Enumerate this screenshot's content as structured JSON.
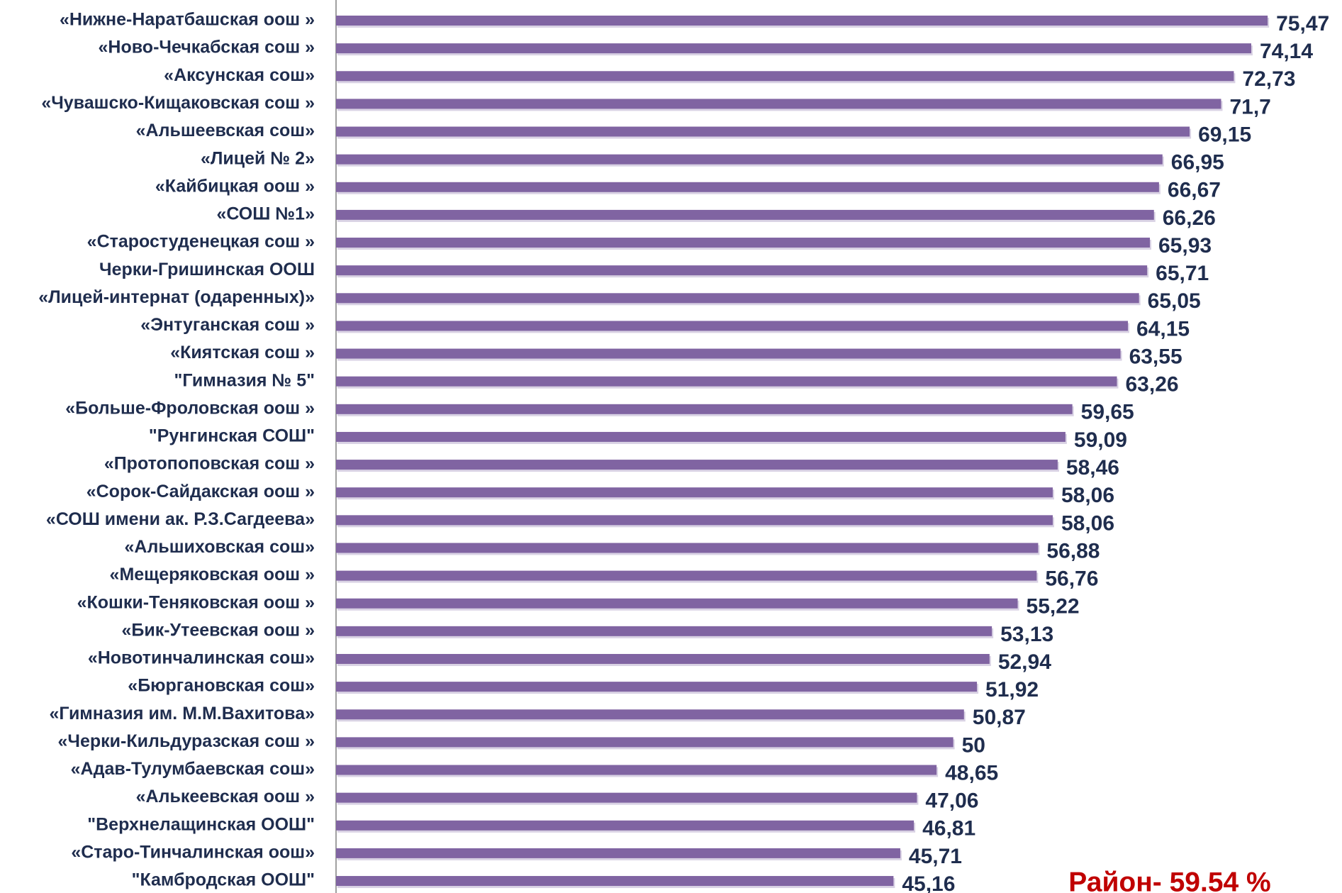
{
  "chart_data": {
    "type": "bar",
    "orientation": "horizontal",
    "categories": [
      "«Нижне-Наратбашская оош »",
      "«Ново-Чечкабская сош »",
      "«Аксунская сош»",
      "«Чувашско-Кищаковская сош »",
      "«Альшеевская сош»",
      "«Лицей № 2»",
      "«Кайбицкая оош »",
      "«СОШ №1»",
      "«Старостуденецкая сош »",
      "Черки-Гришинская ООШ",
      "«Лицей-интернат (одаренных)»",
      "«Энтуганская сош »",
      "«Киятская сош »",
      "\"Гимназия № 5\"",
      "«Больше-Фроловская оош »",
      "\"Рунгинская СОШ\"",
      "«Протопоповская сош »",
      "«Сорок-Сайдакская оош »",
      "«СОШ имени ак. Р.З.Сагдеева»",
      "«Альшиховская сош»",
      "«Мещеряковская оош »",
      "«Кошки-Теняковская оош »",
      "«Бик-Утеевская оош »",
      "«Новотинчалинская сош»",
      "«Бюргановская сош»",
      "«Гимназия им. М.М.Вахитова»",
      "«Черки-Кильдуразская сош »",
      "«Адав-Тулумбаевская сош»",
      "«Алькеевская оош »",
      "\"Верхнелащинская ООШ\"",
      "«Старо-Тинчалинская оош»",
      "\"Камбродская ООШ\""
    ],
    "values": [
      75.47,
      74.14,
      72.73,
      71.7,
      69.15,
      66.95,
      66.67,
      66.26,
      65.93,
      65.71,
      65.05,
      64.15,
      63.55,
      63.26,
      59.65,
      59.09,
      58.46,
      58.06,
      58.06,
      56.88,
      56.76,
      55.22,
      53.13,
      52.94,
      51.92,
      50.87,
      50,
      48.65,
      47.06,
      46.81,
      45.71,
      45.16
    ],
    "value_labels": [
      "75,47",
      "74,14",
      "72,73",
      "71,7",
      "69,15",
      "66,95",
      "66,67",
      "66,26",
      "65,93",
      "65,71",
      "65,05",
      "64,15",
      "63,55",
      "63,26",
      "59,65",
      "59,09",
      "58,46",
      "58,06",
      "58,06",
      "56,88",
      "56,76",
      "55,22",
      "53,13",
      "52,94",
      "51,92",
      "50,87",
      "50",
      "48,65",
      "47,06",
      "46,81",
      "45,71",
      "45,16"
    ],
    "color": "#8064a2",
    "xlim": [
      0,
      80
    ],
    "annotation": "Район- 59.54 %"
  }
}
